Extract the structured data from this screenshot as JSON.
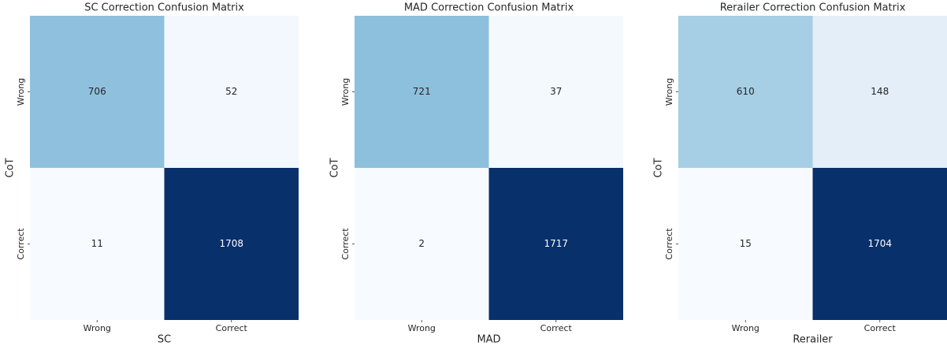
{
  "chart_data": [
    {
      "type": "heatmap",
      "title": "SC Correction Confusion Matrix",
      "xlabel": "SC",
      "ylabel": "CoT",
      "x_categories": [
        "Wrong",
        "Correct"
      ],
      "y_categories": [
        "Wrong",
        "Correct"
      ],
      "values": [
        [
          706,
          52
        ],
        [
          11,
          1708
        ]
      ],
      "colors": [
        [
          "#8fc1de",
          "#f3f8fe"
        ],
        [
          "#f7fbff",
          "#08306b"
        ]
      ]
    },
    {
      "type": "heatmap",
      "title": "MAD Correction Confusion Matrix",
      "xlabel": "MAD",
      "ylabel": "CoT",
      "x_categories": [
        "Wrong",
        "Correct"
      ],
      "y_categories": [
        "Wrong",
        "Correct"
      ],
      "values": [
        [
          721,
          37
        ],
        [
          2,
          1717
        ]
      ],
      "colors": [
        [
          "#8dc0dd",
          "#f4f9fe"
        ],
        [
          "#f7fbff",
          "#08306b"
        ]
      ]
    },
    {
      "type": "heatmap",
      "title": "Rerailer Correction Confusion Matrix",
      "xlabel": "Rerailer",
      "ylabel": "CoT",
      "x_categories": [
        "Wrong",
        "Correct"
      ],
      "y_categories": [
        "Wrong",
        "Correct"
      ],
      "values": [
        [
          610,
          148
        ],
        [
          15,
          1704
        ]
      ],
      "colors": [
        [
          "#a6cee4",
          "#e3eef9"
        ],
        [
          "#f7fbff",
          "#08306b"
        ]
      ]
    }
  ]
}
